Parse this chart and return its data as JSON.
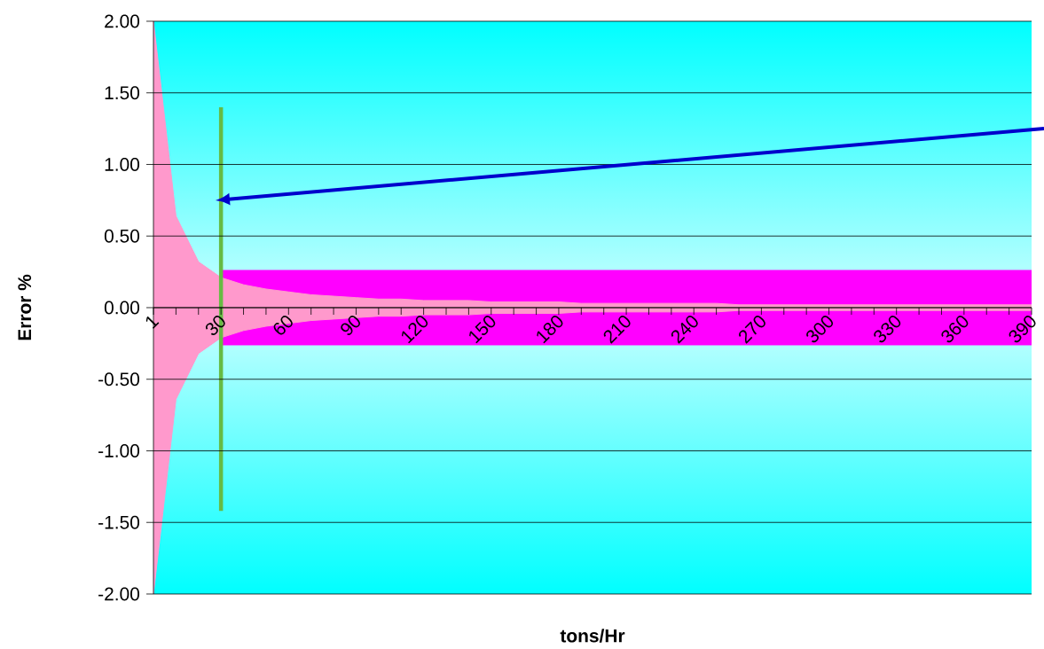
{
  "chart_data": {
    "type": "area",
    "xlabel": "tons/Hr",
    "ylabel": "Error %",
    "categories": [
      "1",
      null,
      null,
      "30",
      null,
      null,
      "60",
      null,
      null,
      "90",
      null,
      null,
      "120",
      null,
      null,
      "150",
      null,
      null,
      "180",
      null,
      null,
      "210",
      null,
      null,
      "240",
      null,
      null,
      "270",
      null,
      null,
      "300",
      null,
      null,
      "330",
      null,
      null,
      "360",
      null,
      null,
      "390"
    ],
    "series": [
      {
        "color": "#ff00ff",
        "values": [
          null,
          null,
          null,
          0.26,
          0.26,
          0.26,
          0.26,
          0.26,
          0.26,
          0.26,
          0.26,
          0.26,
          0.26,
          0.26,
          0.26,
          0.26,
          0.26,
          0.26,
          0.26,
          0.26,
          0.26,
          0.26,
          0.26,
          0.26,
          0.26,
          0.26,
          0.26,
          0.26,
          0.26,
          0.26,
          0.26,
          0.26,
          0.26,
          0.26,
          0.26,
          0.26,
          0.26,
          0.26,
          0.26,
          0.26
        ]
      },
      {
        "color": "#ff00ff",
        "values": [
          null,
          null,
          null,
          -0.26,
          -0.26,
          -0.26,
          -0.26,
          -0.26,
          -0.26,
          -0.26,
          -0.26,
          -0.26,
          -0.26,
          -0.26,
          -0.26,
          -0.26,
          -0.26,
          -0.26,
          -0.26,
          -0.26,
          -0.26,
          -0.26,
          -0.26,
          -0.26,
          -0.26,
          -0.26,
          -0.26,
          -0.26,
          -0.26,
          -0.26,
          -0.26,
          -0.26,
          -0.26,
          -0.26,
          -0.26,
          -0.26,
          -0.26,
          -0.26,
          -0.26,
          -0.26
        ]
      },
      {
        "color": "#ff99cc",
        "values": [
          2,
          0.64,
          0.32,
          0.21,
          0.16,
          0.13,
          0.11,
          0.09,
          0.08,
          0.07,
          0.06,
          0.06,
          0.05,
          0.05,
          0.05,
          0.04,
          0.04,
          0.04,
          0.04,
          0.03,
          0.03,
          0.03,
          0.03,
          0.03,
          0.03,
          0.03,
          0.02,
          0.02,
          0.02,
          0.02,
          0.02,
          0.02,
          0.02,
          0.02,
          0.02,
          0.02,
          0.02,
          0.02,
          0.02,
          0.02
        ]
      },
      {
        "color": "#ff99cc",
        "values": [
          -2,
          -0.64,
          -0.32,
          -0.21,
          -0.16,
          -0.13,
          -0.11,
          -0.09,
          -0.08,
          -0.07,
          -0.06,
          -0.06,
          -0.05,
          -0.05,
          -0.05,
          -0.04,
          -0.04,
          -0.04,
          -0.04,
          -0.03,
          -0.03,
          -0.03,
          -0.03,
          -0.03,
          -0.03,
          -0.03,
          -0.02,
          -0.02,
          -0.02,
          -0.02,
          -0.02,
          -0.02,
          -0.02,
          -0.02,
          -0.02,
          -0.02,
          -0.02,
          -0.02,
          -0.02,
          -0.02
        ]
      },
      {
        "type": "line",
        "color": "#66bb44",
        "x": [
          "30",
          "30"
        ],
        "values": [
          1.4,
          -1.42
        ]
      }
    ],
    "ylim": [
      -2,
      2
    ],
    "yticks": [
      {
        "value": -2,
        "label": "-2.00"
      },
      {
        "value": -1.5,
        "label": "-1.50"
      },
      {
        "value": -1,
        "label": "-1.00"
      },
      {
        "value": -0.5,
        "label": "-0.50"
      },
      {
        "value": 0,
        "label": "0.00"
      },
      {
        "value": 0.5,
        "label": "0.50"
      },
      {
        "value": 1,
        "label": "1.00"
      },
      {
        "value": 1.5,
        "label": "1.50"
      },
      {
        "value": 2,
        "label": "2.00"
      }
    ],
    "grid": "y",
    "marker": "none"
  }
}
